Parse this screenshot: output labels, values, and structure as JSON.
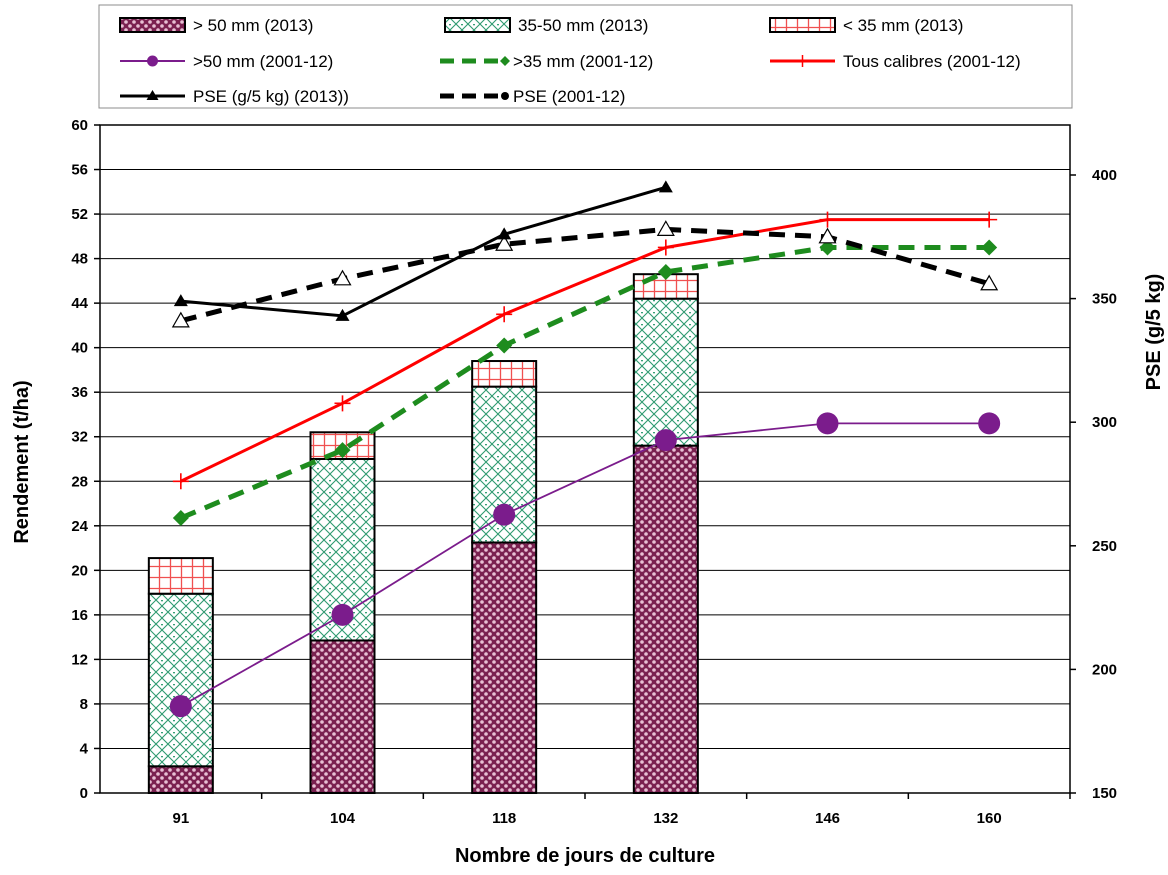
{
  "chart_data": {
    "type": "bar",
    "title": "",
    "xlabel": "Nombre de jours de culture",
    "ylabel": "Rendement (t/ha)",
    "y2label": "PSE (g/5 kg)",
    "categories": [
      "91",
      "104",
      "118",
      "132",
      "146",
      "160"
    ],
    "ylim": [
      0,
      60
    ],
    "y2lim": [
      150,
      420
    ],
    "yticks": [
      "0",
      "4",
      "8",
      "12",
      "16",
      "20",
      "24",
      "28",
      "32",
      "36",
      "40",
      "44",
      "48",
      "52",
      "56",
      "60"
    ],
    "y2ticks": [
      "150",
      "200",
      "250",
      "300",
      "350",
      "400"
    ],
    "grid": true,
    "legend_position": "top",
    "stacked_bars": [
      {
        "name": "> 50 mm (2013)",
        "values": [
          2.4,
          13.7,
          22.5,
          31.2,
          null,
          null
        ]
      },
      {
        "name": "35-50 mm (2013)",
        "values": [
          15.5,
          16.3,
          14.0,
          13.2,
          null,
          null
        ]
      },
      {
        "name": "< 35 mm (2013)",
        "values": [
          3.2,
          2.4,
          2.3,
          2.2,
          null,
          null
        ]
      }
    ],
    "series": [
      {
        "name": ">50 mm (2001-12)",
        "axis": "left",
        "values": [
          7.8,
          16.0,
          25.0,
          31.7,
          33.2,
          33.2
        ],
        "color": "#7B1C8C"
      },
      {
        "name": ">35 mm (2001-12)",
        "axis": "left",
        "values": [
          24.7,
          30.8,
          40.2,
          46.8,
          49.0,
          49.0
        ],
        "color": "#1E8C1E"
      },
      {
        "name": "Tous calibres (2001-12)",
        "axis": "left",
        "values": [
          28.0,
          35.0,
          43.0,
          49.0,
          51.5,
          51.5
        ],
        "color": "#FF0000"
      },
      {
        "name": "PSE (g/5 kg) (2013))",
        "axis": "right",
        "values": [
          349,
          343,
          376,
          395,
          null,
          null
        ],
        "color": "#000000"
      },
      {
        "name": "PSE (2001-12)",
        "axis": "right",
        "values": [
          341,
          358,
          372,
          378,
          375,
          356
        ],
        "color": "#000000"
      }
    ]
  }
}
